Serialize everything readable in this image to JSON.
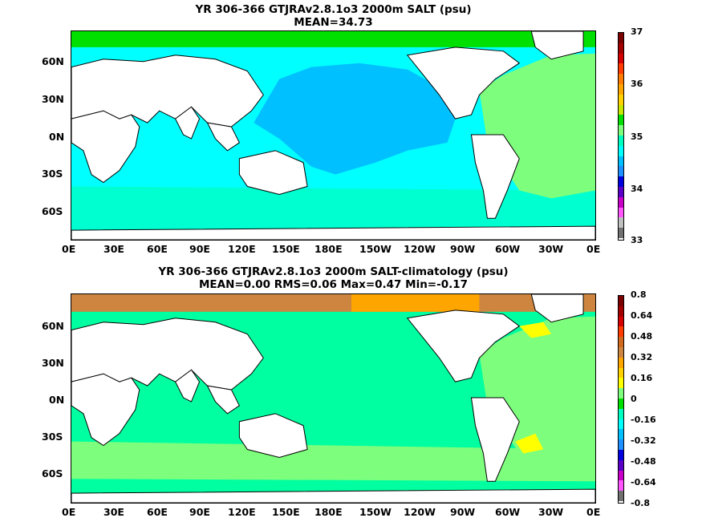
{
  "panels": [
    {
      "title_line1": "YR 306-366 GTJRAv2.8.1o3 2000m SALT (psu)",
      "title_line2": "MEAN=34.73",
      "x_ticks": [
        "0E",
        "30E",
        "60E",
        "90E",
        "120E",
        "150E",
        "180E",
        "150W",
        "120W",
        "90W",
        "60W",
        "30W",
        "0E"
      ],
      "y_ticks": [
        "60N",
        "30N",
        "0N",
        "30S",
        "60S"
      ],
      "colorbar_labels": [
        "37",
        "36",
        "35",
        "34",
        "33"
      ],
      "colorbar_colors": [
        "#7b0000",
        "#a50000",
        "#d60000",
        "#ff3c00",
        "#ff7a00",
        "#ffa500",
        "#ffd200",
        "#c8e600",
        "#00e000",
        "#7dff7d",
        "#00ffc0",
        "#00ffff",
        "#00c0ff",
        "#1e90ff",
        "#0000e0",
        "#5a00c8",
        "#c800c8",
        "#ff55ff",
        "#c0c0c0",
        "#707070"
      ],
      "fill_colors": {
        "ocean_main": "#00ffff",
        "north_pacific": "#00c0ff",
        "atlantic": "#7dff7d",
        "arctic": "#00e000",
        "southern": "#00ffd0"
      }
    },
    {
      "title_line1": "YR 306-366 GTJRAv2.8.1o3 2000m SALT-climatology (psu)",
      "title_line2": "MEAN=0.00   RMS=0.06   Max=0.47   Min=-0.17",
      "x_ticks": [
        "0E",
        "30E",
        "60E",
        "90E",
        "120E",
        "150E",
        "180E",
        "150W",
        "120W",
        "90W",
        "60W",
        "30W",
        "0E"
      ],
      "y_ticks": [
        "60N",
        "30N",
        "0N",
        "30S",
        "60S"
      ],
      "colorbar_labels": [
        "0.8",
        "0.64",
        "0.48",
        "0.32",
        "0.16",
        "0",
        "-0.16",
        "-0.32",
        "-0.48",
        "-0.64",
        "-0.8"
      ],
      "colorbar_colors": [
        "#7b0000",
        "#a50000",
        "#d60000",
        "#ff3c00",
        "#d2691e",
        "#cd853f",
        "#ffa500",
        "#ffd200",
        "#ffff00",
        "#7dff7d",
        "#00e000",
        "#00ffc0",
        "#00ffff",
        "#00c0ff",
        "#1e90ff",
        "#0000e0",
        "#5a00c8",
        "#c800c8",
        "#ff55ff",
        "#707070"
      ],
      "fill_colors": {
        "ocean_main": "#00ffa0",
        "arctic": "#cd853f",
        "atlantic": "#7dff7d",
        "anomaly_pos": "#ffff00"
      }
    }
  ]
}
